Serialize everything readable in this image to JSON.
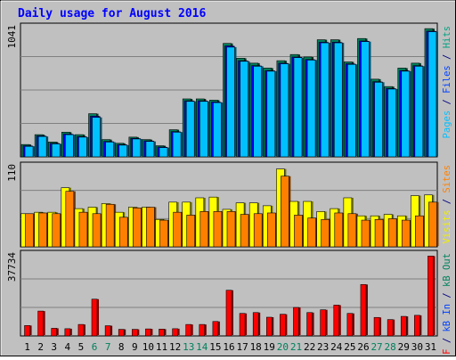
{
  "title": "Daily usage for August 2016",
  "chart_data": {
    "type": "bar",
    "title": "Daily usage for August 2016",
    "categories": [
      "1",
      "2",
      "3",
      "4",
      "5",
      "6",
      "7",
      "8",
      "9",
      "10",
      "11",
      "12",
      "13",
      "14",
      "15",
      "16",
      "17",
      "18",
      "19",
      "20",
      "21",
      "22",
      "23",
      "24",
      "25",
      "26",
      "27",
      "28",
      "29",
      "30",
      "31"
    ],
    "weekend_days": [
      "6",
      "7",
      "13",
      "14",
      "20",
      "21",
      "27",
      "28"
    ],
    "panels": [
      {
        "name": "hits-files-pages",
        "axis_max_label": "1041",
        "ylim": [
          0,
          1041
        ],
        "right_label_parts": [
          {
            "text": "Pages",
            "color": "#00c0ff"
          },
          {
            "text": " / ",
            "color": "#000080"
          },
          {
            "text": "Files",
            "color": "#0040ff"
          },
          {
            "text": " / ",
            "color": "#000080"
          },
          {
            "text": "Hits",
            "color": "#00a080"
          }
        ],
        "series": [
          {
            "name": "Hits",
            "color": "#00805c",
            "values": [
              100,
              180,
              120,
              200,
              180,
              350,
              140,
              110,
              160,
              140,
              90,
              220,
              470,
              470,
              460,
              920,
              800,
              760,
              720,
              780,
              830,
              810,
              950,
              950,
              770,
              960,
              630,
              570,
              720,
              760,
              1040
            ]
          },
          {
            "name": "Files",
            "color": "#0000ff",
            "values": [
              90,
              170,
              110,
              185,
              165,
              330,
              125,
              100,
              150,
              130,
              80,
              205,
              455,
              455,
              445,
              900,
              780,
              740,
              700,
              760,
              810,
              790,
              930,
              930,
              755,
              940,
              610,
              555,
              700,
              740,
              1020
            ]
          },
          {
            "name": "Pages",
            "color": "#00c0ff",
            "values": [
              85,
              165,
              105,
              180,
              160,
              320,
              120,
              95,
              145,
              125,
              75,
              200,
              450,
              450,
              440,
              890,
              775,
              735,
              695,
              755,
              805,
              785,
              925,
              925,
              750,
              935,
              605,
              550,
              695,
              735,
              1015
            ]
          }
        ]
      },
      {
        "name": "visits-sites",
        "axis_max_label": "110",
        "ylim": [
          0,
          110
        ],
        "right_label_parts": [
          {
            "text": "Visits",
            "color": "#f0f000"
          },
          {
            "text": " / ",
            "color": "#000080"
          },
          {
            "text": "Sites",
            "color": "#ff8000"
          }
        ],
        "series": [
          {
            "name": "Visits",
            "color": "#ffff00",
            "values": [
              46,
              48,
              48,
              82,
              53,
              55,
              60,
              48,
              55,
              55,
              38,
              62,
              62,
              68,
              69,
              52,
              61,
              61,
              57,
              108,
              63,
              63,
              49,
              53,
              68,
              43,
              43,
              45,
              43,
              71,
              72
            ]
          },
          {
            "name": "Sites",
            "color": "#ff8000",
            "values": [
              46,
              47,
              46,
              77,
              48,
              46,
              59,
              41,
              54,
              55,
              37,
              48,
              44,
              49,
              49,
              49,
              45,
              46,
              47,
              98,
              44,
              40,
              38,
              47,
              46,
              37,
              38,
              39,
              37,
              43,
              62
            ]
          }
        ]
      },
      {
        "name": "kbytes",
        "axis_max_label": "37734",
        "ylim": [
          0,
          37734
        ],
        "right_label_parts": [
          {
            "text": "kB F",
            "color": "#ff0000"
          },
          {
            "text": " / ",
            "color": "#000080"
          },
          {
            "text": "kB In",
            "color": "#0040ff"
          },
          {
            "text": " / ",
            "color": "#000080"
          },
          {
            "text": "kB Out",
            "color": "#00805c"
          }
        ],
        "series": [
          {
            "name": "kB F",
            "color": "#ff0000",
            "values": [
              4900,
              11700,
              3600,
              3400,
              5400,
              17300,
              4800,
              3100,
              3100,
              3300,
              3200,
              3400,
              5400,
              5400,
              6800,
              21500,
              10600,
              11000,
              8800,
              10200,
              13400,
              11000,
              12300,
              14500,
              10600,
              24200,
              8700,
              7700,
              9200,
              9700,
              37600
            ]
          }
        ]
      }
    ]
  }
}
